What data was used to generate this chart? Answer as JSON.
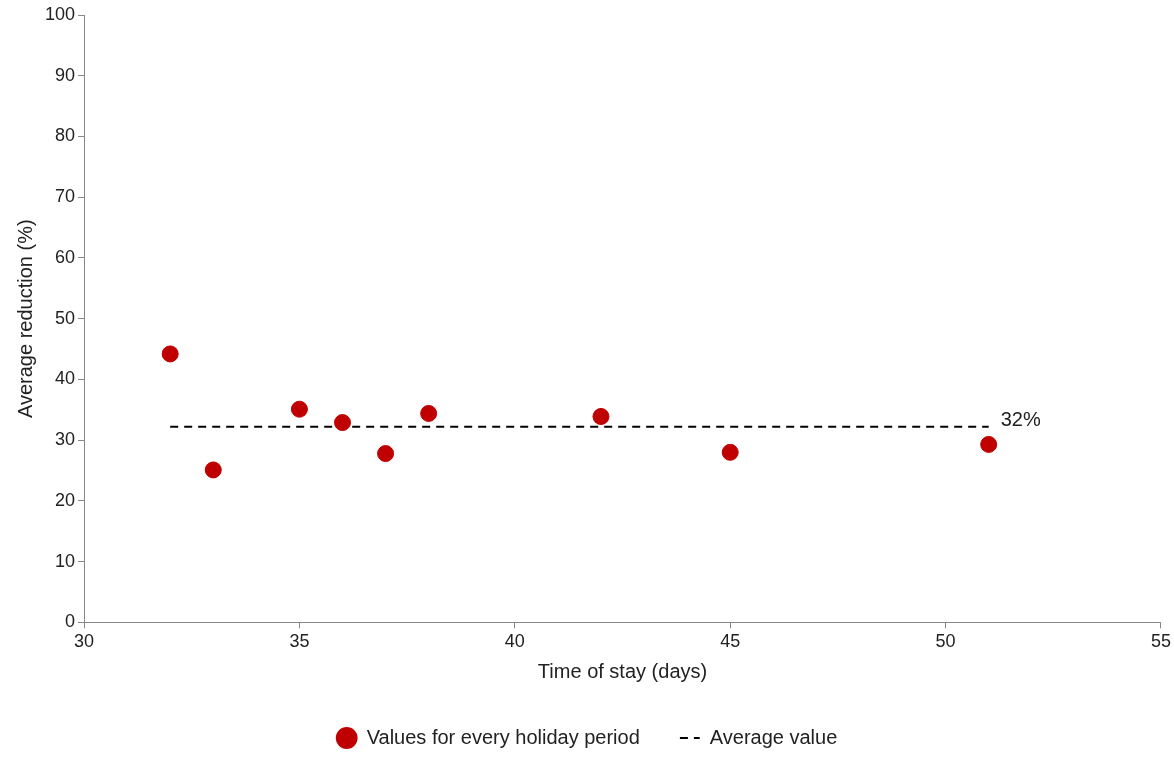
{
  "chart_data": {
    "type": "scatter",
    "xlabel": "Time of stay (days)",
    "ylabel": "Average reduction (%)",
    "xlim": [
      30,
      55
    ],
    "xticks": [
      30,
      35,
      40,
      45,
      50,
      55
    ],
    "ylim": [
      0,
      100
    ],
    "yticks": [
      0,
      10,
      20,
      30,
      40,
      50,
      60,
      70,
      80,
      90,
      100
    ],
    "grid": false,
    "legend": "bottom",
    "marker": "circle",
    "series": [
      {
        "name": "Values for every holiday period",
        "color": "#c00000",
        "x": [
          32,
          33,
          35,
          36,
          37,
          38,
          42,
          45,
          51
        ],
        "values": [
          44.2,
          25.1,
          35.1,
          32.9,
          27.8,
          34.4,
          33.9,
          28.0,
          29.3
        ]
      },
      {
        "name": "Average value",
        "type": "line",
        "color": "#000000",
        "line_style": "dashed",
        "marker": "none",
        "x": [
          32,
          51
        ],
        "values": [
          32.2,
          32.2
        ]
      }
    ],
    "annotations": [
      {
        "text": "32%",
        "x": 51,
        "y": 32.2
      }
    ]
  }
}
